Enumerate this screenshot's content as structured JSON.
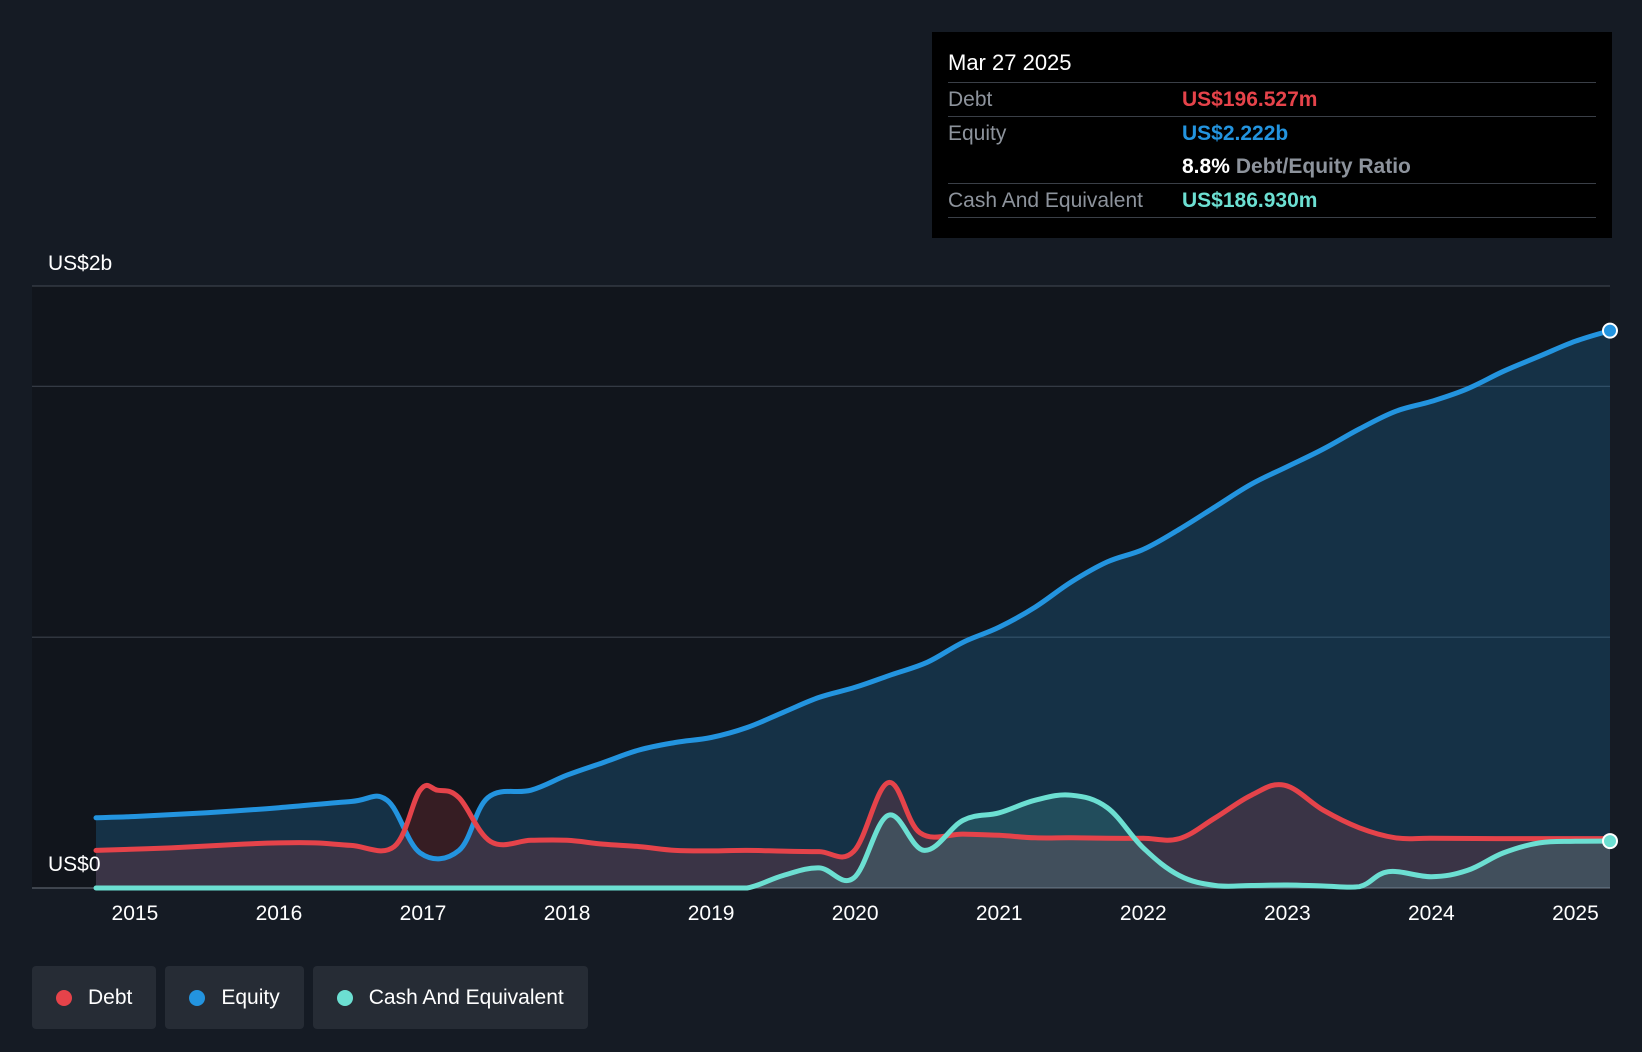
{
  "tooltip": {
    "date": "Mar 27 2025",
    "debt_label": "Debt",
    "debt_value": "US$196.527m",
    "equity_label": "Equity",
    "equity_value": "US$2.222b",
    "ratio_value": "8.8%",
    "ratio_label": "Debt/Equity Ratio",
    "cash_label": "Cash And Equivalent",
    "cash_value": "US$186.930m"
  },
  "legend": [
    {
      "label": "Debt",
      "color": "#e5434a"
    },
    {
      "label": "Equity",
      "color": "#2394df"
    },
    {
      "label": "Cash And Equivalent",
      "color": "#6cdfd2"
    }
  ],
  "chart_data": {
    "type": "area",
    "title": "",
    "xlabel": "",
    "ylabel": "",
    "y_axis_labels": [
      "US$2b",
      "US$0"
    ],
    "x_tick_labels": [
      "2015",
      "2016",
      "2017",
      "2018",
      "2019",
      "2020",
      "2021",
      "2022",
      "2023",
      "2024",
      "2025"
    ],
    "xlim": [
      2014.73,
      2025.24
    ],
    "ylim": [
      0,
      2.4
    ],
    "y_unit": "US$ billions",
    "gridlines_y": [
      0,
      1,
      2,
      2.4
    ],
    "legend_position": "bottom-left",
    "series": [
      {
        "name": "Debt",
        "color": "#e5434a",
        "points": [
          [
            2014.73,
            0.15
          ],
          [
            2015.25,
            0.16
          ],
          [
            2015.75,
            0.175
          ],
          [
            2016.0,
            0.18
          ],
          [
            2016.25,
            0.18
          ],
          [
            2016.5,
            0.17
          ],
          [
            2016.8,
            0.165
          ],
          [
            2016.98,
            0.39
          ],
          [
            2017.1,
            0.39
          ],
          [
            2017.25,
            0.36
          ],
          [
            2017.47,
            0.185
          ],
          [
            2017.75,
            0.19
          ],
          [
            2018.0,
            0.19
          ],
          [
            2018.25,
            0.175
          ],
          [
            2018.5,
            0.165
          ],
          [
            2018.75,
            0.15
          ],
          [
            2019.0,
            0.148
          ],
          [
            2019.25,
            0.15
          ],
          [
            2019.5,
            0.147
          ],
          [
            2019.75,
            0.145
          ],
          [
            2019.99,
            0.146
          ],
          [
            2020.23,
            0.42
          ],
          [
            2020.45,
            0.22
          ],
          [
            2020.75,
            0.215
          ],
          [
            2021.0,
            0.21
          ],
          [
            2021.25,
            0.2
          ],
          [
            2021.5,
            0.2
          ],
          [
            2021.75,
            0.198
          ],
          [
            2022.0,
            0.198
          ],
          [
            2022.25,
            0.197
          ],
          [
            2022.5,
            0.28
          ],
          [
            2022.75,
            0.37
          ],
          [
            2022.98,
            0.41
          ],
          [
            2023.25,
            0.31
          ],
          [
            2023.5,
            0.24
          ],
          [
            2023.75,
            0.2
          ],
          [
            2024.0,
            0.198
          ],
          [
            2024.5,
            0.197
          ],
          [
            2025.0,
            0.197
          ],
          [
            2025.24,
            0.197
          ]
        ]
      },
      {
        "name": "Equity",
        "color": "#2394df",
        "points": [
          [
            2014.73,
            0.28
          ],
          [
            2015.0,
            0.285
          ],
          [
            2015.5,
            0.3
          ],
          [
            2016.0,
            0.32
          ],
          [
            2016.5,
            0.345
          ],
          [
            2016.75,
            0.35
          ],
          [
            2016.98,
            0.14
          ],
          [
            2017.25,
            0.15
          ],
          [
            2017.45,
            0.36
          ],
          [
            2017.75,
            0.39
          ],
          [
            2018.0,
            0.45
          ],
          [
            2018.25,
            0.5
          ],
          [
            2018.5,
            0.55
          ],
          [
            2018.75,
            0.58
          ],
          [
            2019.0,
            0.6
          ],
          [
            2019.25,
            0.64
          ],
          [
            2019.5,
            0.7
          ],
          [
            2019.75,
            0.76
          ],
          [
            2020.0,
            0.8
          ],
          [
            2020.25,
            0.85
          ],
          [
            2020.5,
            0.9
          ],
          [
            2020.75,
            0.98
          ],
          [
            2021.0,
            1.04
          ],
          [
            2021.25,
            1.12
          ],
          [
            2021.5,
            1.22
          ],
          [
            2021.75,
            1.3
          ],
          [
            2022.0,
            1.35
          ],
          [
            2022.25,
            1.43
          ],
          [
            2022.5,
            1.52
          ],
          [
            2022.75,
            1.61
          ],
          [
            2023.0,
            1.68
          ],
          [
            2023.25,
            1.75
          ],
          [
            2023.5,
            1.83
          ],
          [
            2023.75,
            1.9
          ],
          [
            2024.0,
            1.94
          ],
          [
            2024.25,
            1.99
          ],
          [
            2024.5,
            2.06
          ],
          [
            2024.75,
            2.12
          ],
          [
            2025.0,
            2.18
          ],
          [
            2025.24,
            2.222
          ]
        ]
      },
      {
        "name": "Cash And Equivalent",
        "color": "#6cdfd2",
        "points": [
          [
            2014.73,
            0.0
          ],
          [
            2016.0,
            0.0
          ],
          [
            2017.0,
            0.0
          ],
          [
            2018.0,
            0.0
          ],
          [
            2019.0,
            0.0
          ],
          [
            2019.25,
            0.0
          ],
          [
            2019.5,
            0.05
          ],
          [
            2019.75,
            0.08
          ],
          [
            2019.99,
            0.04
          ],
          [
            2020.23,
            0.29
          ],
          [
            2020.48,
            0.15
          ],
          [
            2020.75,
            0.27
          ],
          [
            2021.0,
            0.3
          ],
          [
            2021.25,
            0.35
          ],
          [
            2021.5,
            0.37
          ],
          [
            2021.75,
            0.32
          ],
          [
            2022.0,
            0.16
          ],
          [
            2022.25,
            0.05
          ],
          [
            2022.5,
            0.01
          ],
          [
            2022.75,
            0.01
          ],
          [
            2023.0,
            0.012
          ],
          [
            2023.25,
            0.008
          ],
          [
            2023.5,
            0.005
          ],
          [
            2023.7,
            0.065
          ],
          [
            2024.0,
            0.045
          ],
          [
            2024.25,
            0.07
          ],
          [
            2024.5,
            0.14
          ],
          [
            2024.75,
            0.18
          ],
          [
            2025.0,
            0.186
          ],
          [
            2025.24,
            0.187
          ]
        ]
      }
    ]
  }
}
